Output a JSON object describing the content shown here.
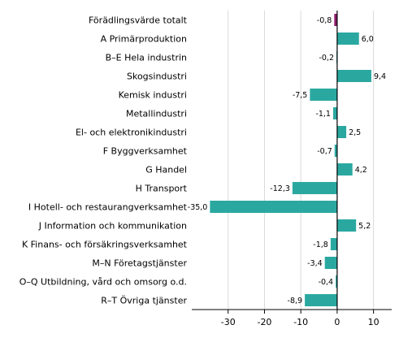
{
  "chart_data": {
    "type": "bar",
    "orientation": "horizontal",
    "categories": [
      "Förädlingsvärde totalt",
      "A Primärproduktion",
      "B–E Hela industrin",
      "Skogsindustri",
      "Kemisk industri",
      "Metallindustri",
      "El- och elektronikindustri",
      "F Byggverksamhet",
      "G Handel",
      "H Transport",
      "I Hotell- och restaurangverksamhet",
      "J Information och kommunikation",
      "K Finans- och försäkringsverksamhet",
      "M–N Företagstjänster",
      "O–Q Utbildning, vård och omsorg o.d.",
      "R–T Övriga tjänster"
    ],
    "values": [
      -0.8,
      6.0,
      -0.2,
      9.4,
      -7.5,
      -1.1,
      2.5,
      -0.7,
      4.2,
      -12.3,
      -35.0,
      5.2,
      -1.8,
      -3.4,
      -0.4,
      -8.9
    ],
    "value_labels": [
      "-0,8",
      "6,0",
      "-0,2",
      "9,4",
      "-7,5",
      "-1,1",
      "2,5",
      "-0,7",
      "4,2",
      "-12,3",
      "-35,0",
      "5,2",
      "-1,8",
      "-3,4",
      "-0,4",
      "-8,9"
    ],
    "bar_colors": [
      "#8b1a6b",
      "#2aa8a0",
      "#2aa8a0",
      "#2aa8a0",
      "#2aa8a0",
      "#2aa8a0",
      "#2aa8a0",
      "#2aa8a0",
      "#2aa8a0",
      "#2aa8a0",
      "#2aa8a0",
      "#2aa8a0",
      "#2aa8a0",
      "#2aa8a0",
      "#2aa8a0",
      "#2aa8a0"
    ],
    "xlim": [
      -40,
      15
    ],
    "xticks": [
      -30,
      -20,
      -10,
      0,
      10
    ],
    "xtick_labels": [
      "-30",
      "-20",
      "-10",
      "0",
      "10"
    ],
    "grid": "vertical",
    "grid_color": "#d9d9d9",
    "title": "",
    "xlabel": "",
    "ylabel": ""
  }
}
